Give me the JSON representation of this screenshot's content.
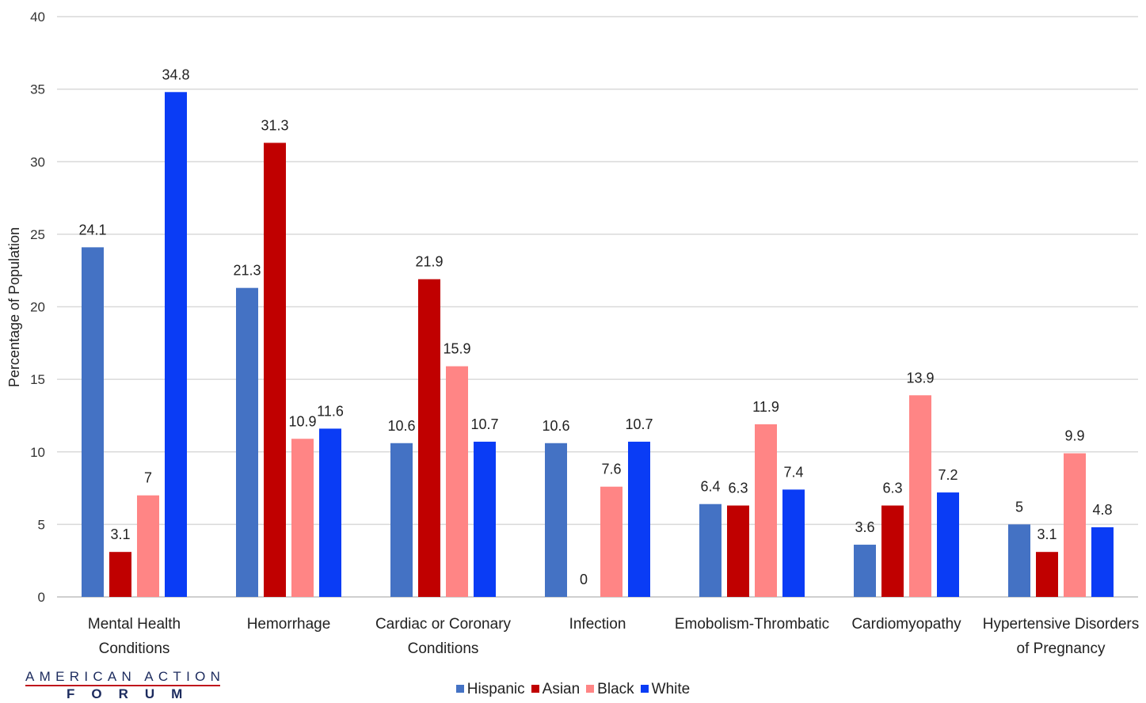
{
  "chart_data": {
    "type": "bar",
    "title": "",
    "xlabel": "",
    "ylabel": "Percentage of Population",
    "ylim": [
      0,
      40
    ],
    "yticks": [
      0,
      5,
      10,
      15,
      20,
      25,
      30,
      35,
      40
    ],
    "grid": true,
    "legend_position": "bottom",
    "categories": [
      [
        "Mental Health",
        "Conditions"
      ],
      [
        "Hemorrhage"
      ],
      [
        "Cardiac or Coronary",
        "Conditions"
      ],
      [
        "Infection"
      ],
      [
        "Emobolism-Thrombatic"
      ],
      [
        "Cardiomyopathy"
      ],
      [
        "Hypertensive Disorders",
        "of Pregnancy"
      ]
    ],
    "series": [
      {
        "name": "Hispanic",
        "color": "#4472c4",
        "values": [
          24.1,
          21.3,
          10.6,
          10.6,
          6.4,
          3.6,
          5
        ]
      },
      {
        "name": "Asian",
        "color": "#c00000",
        "values": [
          3.1,
          31.3,
          21.9,
          0,
          6.3,
          6.3,
          3.1
        ]
      },
      {
        "name": "Black",
        "color": "#ff8585",
        "values": [
          7,
          10.9,
          15.9,
          7.6,
          11.9,
          13.9,
          9.9
        ]
      },
      {
        "name": "White",
        "color": "#0a3cf5",
        "values": [
          34.8,
          11.6,
          10.7,
          10.7,
          7.4,
          7.2,
          4.8
        ]
      }
    ]
  },
  "logo": {
    "line1": "AMERICAN ACTION",
    "line2": "FORUM"
  }
}
